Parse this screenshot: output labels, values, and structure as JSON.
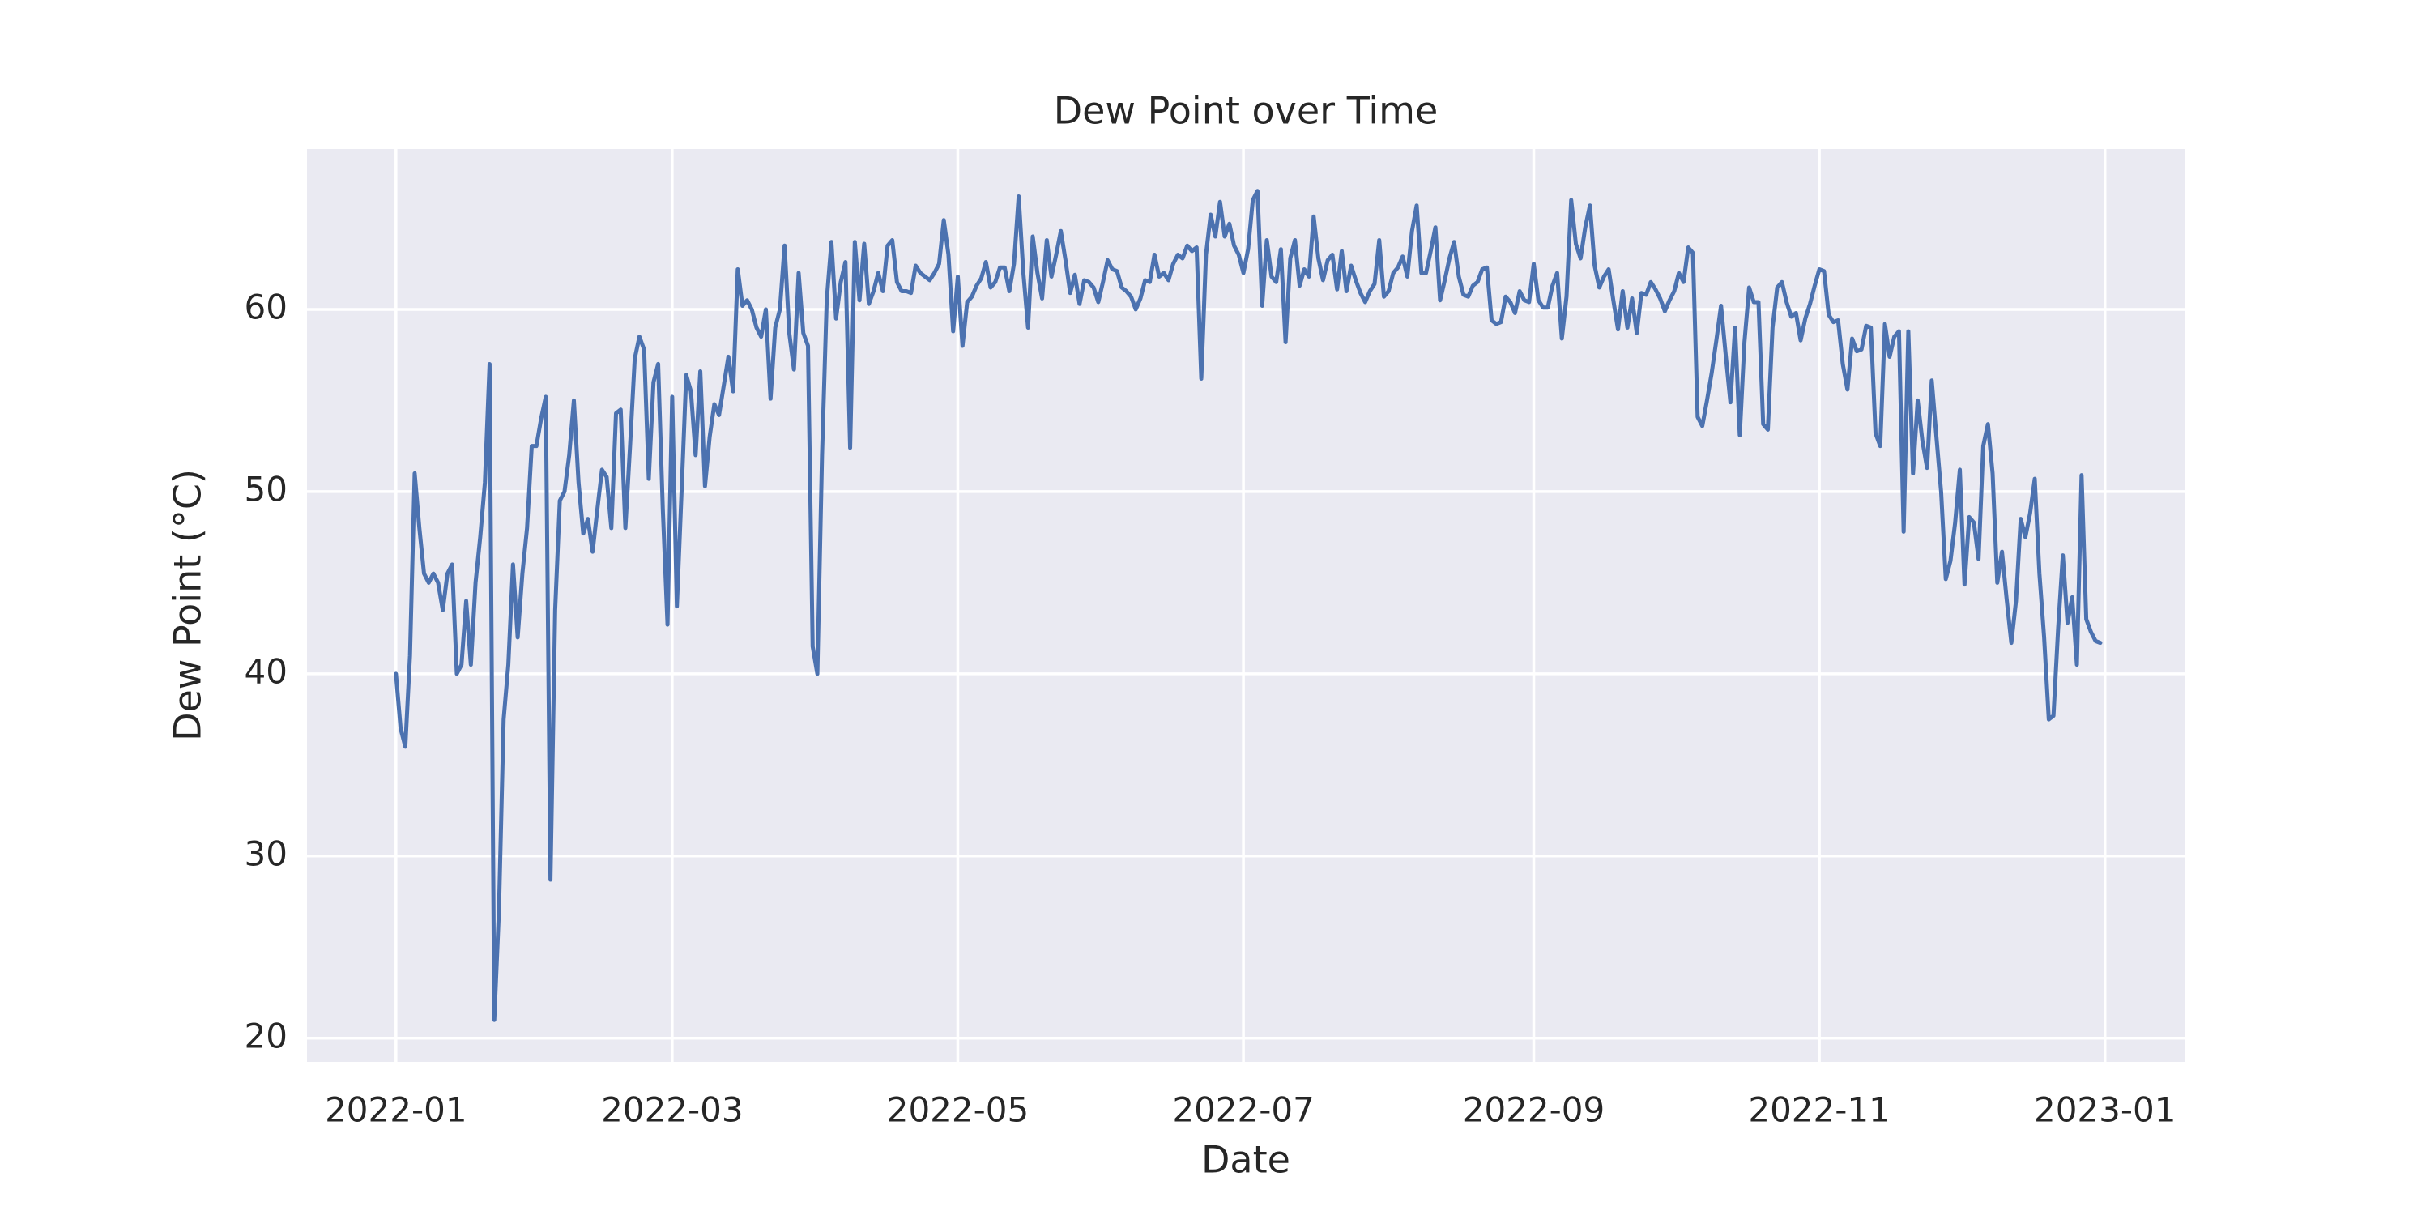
{
  "chart_data": {
    "type": "line",
    "title": "Dew Point over Time",
    "xlabel": "Date",
    "ylabel": "Dew Point (°C)",
    "color": "#4c72b0",
    "grid": true,
    "x": [
      "2022-01-01",
      "2022-01-02",
      "2022-01-03",
      "2022-01-04",
      "2022-01-05",
      "2022-01-06",
      "2022-01-07",
      "2022-01-08",
      "2022-01-09",
      "2022-01-10",
      "2022-01-11",
      "2022-01-12",
      "2022-01-13",
      "2022-01-14",
      "2022-01-15",
      "2022-01-16",
      "2022-01-17",
      "2022-01-18",
      "2022-01-19",
      "2022-01-20",
      "2022-01-21",
      "2022-01-22",
      "2022-01-23",
      "2022-01-24",
      "2022-01-25",
      "2022-01-26",
      "2022-01-27",
      "2022-01-28",
      "2022-01-29",
      "2022-01-30",
      "2022-01-31",
      "2022-02-01",
      "2022-02-02",
      "2022-02-03",
      "2022-02-04",
      "2022-02-05",
      "2022-02-06",
      "2022-02-07",
      "2022-02-08",
      "2022-02-09",
      "2022-02-10",
      "2022-02-11",
      "2022-02-12",
      "2022-02-13",
      "2022-02-14",
      "2022-02-15",
      "2022-02-16",
      "2022-02-17",
      "2022-02-18",
      "2022-02-19",
      "2022-02-20",
      "2022-02-21",
      "2022-02-22",
      "2022-02-23",
      "2022-02-24",
      "2022-02-25",
      "2022-02-26",
      "2022-02-27",
      "2022-02-28",
      "2022-03-01",
      "2022-03-02",
      "2022-03-03",
      "2022-03-04",
      "2022-03-05",
      "2022-03-06",
      "2022-03-07",
      "2022-03-08",
      "2022-03-09",
      "2022-03-10",
      "2022-03-11",
      "2022-03-12",
      "2022-03-13",
      "2022-03-14",
      "2022-03-15",
      "2022-03-16",
      "2022-03-17",
      "2022-03-18",
      "2022-03-19",
      "2022-03-20",
      "2022-03-21",
      "2022-03-22",
      "2022-03-23",
      "2022-03-24",
      "2022-03-25",
      "2022-03-26",
      "2022-03-27",
      "2022-03-28",
      "2022-03-29",
      "2022-03-30",
      "2022-03-31",
      "2022-04-01",
      "2022-04-02",
      "2022-04-03",
      "2022-04-04",
      "2022-04-05",
      "2022-04-06",
      "2022-04-07",
      "2022-04-08",
      "2022-04-09",
      "2022-04-10",
      "2022-04-11",
      "2022-04-12",
      "2022-04-13",
      "2022-04-14",
      "2022-04-15",
      "2022-04-16",
      "2022-04-17",
      "2022-04-18",
      "2022-04-19",
      "2022-04-20",
      "2022-04-21",
      "2022-04-22",
      "2022-04-23",
      "2022-04-24",
      "2022-04-25",
      "2022-04-26",
      "2022-04-27",
      "2022-04-28",
      "2022-04-29",
      "2022-04-30",
      "2022-05-01",
      "2022-05-02",
      "2022-05-03",
      "2022-05-04",
      "2022-05-05",
      "2022-05-06",
      "2022-05-07",
      "2022-05-08",
      "2022-05-09",
      "2022-05-10",
      "2022-05-11",
      "2022-05-12",
      "2022-05-13",
      "2022-05-14",
      "2022-05-15",
      "2022-05-16",
      "2022-05-17",
      "2022-05-18",
      "2022-05-19",
      "2022-05-20",
      "2022-05-21",
      "2022-05-22",
      "2022-05-23",
      "2022-05-24",
      "2022-05-25",
      "2022-05-26",
      "2022-05-27",
      "2022-05-28",
      "2022-05-29",
      "2022-05-30",
      "2022-05-31",
      "2022-06-01",
      "2022-06-02",
      "2022-06-03",
      "2022-06-04",
      "2022-06-05",
      "2022-06-06",
      "2022-06-07",
      "2022-06-08",
      "2022-06-09",
      "2022-06-10",
      "2022-06-11",
      "2022-06-12",
      "2022-06-13",
      "2022-06-14",
      "2022-06-15",
      "2022-06-16",
      "2022-06-17",
      "2022-06-18",
      "2022-06-19",
      "2022-06-20",
      "2022-06-21",
      "2022-06-22",
      "2022-06-23",
      "2022-06-24",
      "2022-06-25",
      "2022-06-26",
      "2022-06-27",
      "2022-06-28",
      "2022-06-29",
      "2022-06-30",
      "2022-07-01",
      "2022-07-02",
      "2022-07-03",
      "2022-07-04",
      "2022-07-05",
      "2022-07-06",
      "2022-07-07",
      "2022-07-08",
      "2022-07-09",
      "2022-07-10",
      "2022-07-11",
      "2022-07-12",
      "2022-07-13",
      "2022-07-14",
      "2022-07-15",
      "2022-07-16",
      "2022-07-17",
      "2022-07-18",
      "2022-07-19",
      "2022-07-20",
      "2022-07-21",
      "2022-07-22",
      "2022-07-23",
      "2022-07-24",
      "2022-07-25",
      "2022-07-26",
      "2022-07-27",
      "2022-07-28",
      "2022-07-29",
      "2022-07-30",
      "2022-07-31",
      "2022-08-01",
      "2022-08-02",
      "2022-08-03",
      "2022-08-04",
      "2022-08-05",
      "2022-08-06",
      "2022-08-07",
      "2022-08-08",
      "2022-08-09",
      "2022-08-10",
      "2022-08-11",
      "2022-08-12",
      "2022-08-13",
      "2022-08-14",
      "2022-08-15",
      "2022-08-16",
      "2022-08-17",
      "2022-08-18",
      "2022-08-19",
      "2022-08-20",
      "2022-08-21",
      "2022-08-22",
      "2022-08-23",
      "2022-08-24",
      "2022-08-25",
      "2022-08-26",
      "2022-08-27",
      "2022-08-28",
      "2022-08-29",
      "2022-08-30",
      "2022-08-31",
      "2022-09-01",
      "2022-09-02",
      "2022-09-03",
      "2022-09-04",
      "2022-09-05",
      "2022-09-06",
      "2022-09-07",
      "2022-09-08",
      "2022-09-09",
      "2022-09-10",
      "2022-09-11",
      "2022-09-12",
      "2022-09-13",
      "2022-09-14",
      "2022-09-15",
      "2022-09-16",
      "2022-09-17",
      "2022-09-18",
      "2022-09-19",
      "2022-09-20",
      "2022-09-21",
      "2022-09-22",
      "2022-09-23",
      "2022-09-24",
      "2022-09-25",
      "2022-09-26",
      "2022-09-27",
      "2022-09-28",
      "2022-09-29",
      "2022-09-30",
      "2022-10-01",
      "2022-10-02",
      "2022-10-03",
      "2022-10-04",
      "2022-10-05",
      "2022-10-06",
      "2022-10-07",
      "2022-10-08",
      "2022-10-09",
      "2022-10-10",
      "2022-10-11",
      "2022-10-12",
      "2022-10-13",
      "2022-10-14",
      "2022-10-15",
      "2022-10-16",
      "2022-10-17",
      "2022-10-18",
      "2022-10-19",
      "2022-10-20",
      "2022-10-21",
      "2022-10-22",
      "2022-10-23",
      "2022-10-24",
      "2022-10-25",
      "2022-10-26",
      "2022-10-27",
      "2022-10-28",
      "2022-10-29",
      "2022-10-30",
      "2022-10-31",
      "2022-11-01",
      "2022-11-02",
      "2022-11-03",
      "2022-11-04",
      "2022-11-05",
      "2022-11-06",
      "2022-11-07",
      "2022-11-08",
      "2022-11-09",
      "2022-11-10",
      "2022-11-11",
      "2022-11-12",
      "2022-11-13",
      "2022-11-14",
      "2022-11-15",
      "2022-11-16",
      "2022-11-17",
      "2022-11-18",
      "2022-11-19",
      "2022-11-20",
      "2022-11-21",
      "2022-11-22",
      "2022-11-23",
      "2022-11-24",
      "2022-11-25",
      "2022-11-26",
      "2022-11-27",
      "2022-11-28",
      "2022-11-29",
      "2022-11-30",
      "2022-12-01",
      "2022-12-02",
      "2022-12-03",
      "2022-12-04",
      "2022-12-05",
      "2022-12-06",
      "2022-12-07",
      "2022-12-08",
      "2022-12-09",
      "2022-12-10",
      "2022-12-11",
      "2022-12-12",
      "2022-12-13",
      "2022-12-14",
      "2022-12-15",
      "2022-12-16",
      "2022-12-17",
      "2022-12-18",
      "2022-12-19",
      "2022-12-20",
      "2022-12-21",
      "2022-12-22",
      "2022-12-23",
      "2022-12-24",
      "2022-12-25",
      "2022-12-26",
      "2022-12-27",
      "2022-12-28",
      "2022-12-29",
      "2022-12-30",
      "2022-12-31"
    ],
    "values": [
      40,
      37,
      36,
      41,
      51,
      48,
      45.5,
      45,
      45.5,
      45,
      43.5,
      45.5,
      46,
      40,
      40.5,
      44,
      40.5,
      45,
      47.5,
      50.5,
      57,
      21,
      27,
      37.5,
      40.5,
      46,
      42,
      45.5,
      48,
      52.5,
      52.5,
      54,
      55.2,
      28.7,
      43.5,
      49.5,
      50,
      52,
      55,
      50.5,
      47.7,
      48.5,
      46.7,
      49,
      51.2,
      50.8,
      48,
      54.3,
      54.5,
      48,
      52.5,
      57.3,
      58.5,
      57.8,
      50.7,
      56,
      57,
      49,
      42.7,
      55.2,
      43.7,
      50,
      56.4,
      55.5,
      52,
      56.6,
      50.3,
      53,
      54.8,
      54.2,
      55.8,
      57.4,
      55.5,
      62.2,
      60.2,
      60.5,
      60,
      59,
      58.5,
      60,
      55.1,
      59,
      60,
      63.5,
      58.7,
      56.7,
      62,
      58.7,
      58,
      41.5,
      40,
      52,
      60.5,
      63.7,
      59.5,
      61.5,
      62.6,
      52.4,
      63.7,
      60.5,
      63.6,
      60.3,
      61,
      62,
      61,
      63.5,
      63.8,
      61.5,
      61,
      61,
      60.9,
      62.4,
      62,
      61.8,
      61.6,
      62,
      62.5,
      64.9,
      63,
      58.8,
      61.8,
      58,
      60.4,
      60.7,
      61.3,
      61.7,
      62.6,
      61.2,
      61.5,
      62.3,
      62.3,
      61,
      62.5,
      66.2,
      62,
      59,
      64,
      62,
      60.6,
      63.8,
      61.8,
      63,
      64.3,
      62.7,
      60.9,
      61.9,
      60.3,
      61.6,
      61.5,
      61.2,
      60.4,
      61.5,
      62.7,
      62.2,
      62.1,
      61.2,
      61,
      60.7,
      60,
      60.6,
      61.6,
      61.5,
      63,
      61.8,
      62,
      61.6,
      62.5,
      63,
      62.8,
      63.5,
      63.2,
      63.4,
      56.2,
      63,
      65.2,
      64,
      65.9,
      64,
      64.7,
      63.5,
      63,
      62,
      63.3,
      66,
      66.5,
      60.2,
      63.8,
      61.8,
      61.5,
      63.3,
      58.2,
      62.8,
      63.8,
      61.3,
      62.2,
      61.8,
      65.1,
      62.8,
      61.6,
      62.7,
      63,
      61.1,
      63.2,
      61,
      62.4,
      61.6,
      60.9,
      60.4,
      61,
      61.4,
      63.8,
      60.7,
      61,
      62,
      62.3,
      62.9,
      61.8,
      64.3,
      65.7,
      62,
      62,
      63.2,
      64.5,
      60.5,
      61.6,
      62.8,
      63.7,
      61.8,
      60.8,
      60.7,
      61.3,
      61.5,
      62.2,
      62.3,
      59.4,
      59.2,
      59.3,
      60.7,
      60.4,
      59.8,
      61,
      60.5,
      60.4,
      62.5,
      60.5,
      60.1,
      60.1,
      61.3,
      62,
      58.4,
      60.7,
      66,
      63.6,
      62.8,
      64.5,
      65.7,
      62.4,
      61.2,
      61.8,
      62.2,
      60.5,
      58.9,
      61,
      59,
      60.6,
      58.7,
      60.9,
      60.8,
      61.5,
      61.1,
      60.6,
      59.9,
      60.5,
      61,
      62,
      61.5,
      63.4,
      63.1,
      54.1,
      53.6,
      55,
      56.5,
      58.3,
      60.2,
      57.5,
      54.9,
      59,
      53.1,
      58.2,
      61.2,
      60.4,
      60.4,
      53.7,
      53.4,
      59,
      61.2,
      61.5,
      60.4,
      59.6,
      59.8,
      58.3,
      59.5,
      60.3,
      61.3,
      62.2,
      62.1,
      59.7,
      59.3,
      59.4,
      57,
      55.6,
      58.4,
      57.7,
      57.8,
      59.1,
      59,
      53.2,
      52.5,
      59.2,
      57.4,
      58.5,
      58.8,
      47.8,
      58.8,
      51,
      55,
      52.8,
      51.3,
      56.1,
      53,
      50,
      45.2,
      46.2,
      48.3,
      51.2,
      44.9,
      48.6,
      48.3,
      46.3,
      52.5,
      53.7,
      51,
      45,
      46.7,
      44.1,
      41.7,
      44,
      48.5,
      47.5,
      48.8,
      50.7,
      45.5,
      42,
      37.5,
      37.7,
      42.5,
      46.5,
      42.8,
      44.2,
      40.5,
      50.9,
      43,
      42.3,
      41.8,
      41.7
    ],
    "xlim": [
      "2021-12-13",
      "2023-01-18"
    ],
    "xticks": [
      {
        "value": "2022-01-01",
        "label": "2022-01"
      },
      {
        "value": "2022-03-01",
        "label": "2022-03"
      },
      {
        "value": "2022-05-01",
        "label": "2022-05"
      },
      {
        "value": "2022-07-01",
        "label": "2022-07"
      },
      {
        "value": "2022-09-01",
        "label": "2022-09"
      },
      {
        "value": "2022-11-01",
        "label": "2022-11"
      },
      {
        "value": "2023-01-01",
        "label": "2023-01"
      }
    ],
    "ylim": [
      18.7,
      68.8
    ],
    "yticks": [
      20,
      30,
      40,
      50,
      60
    ]
  }
}
